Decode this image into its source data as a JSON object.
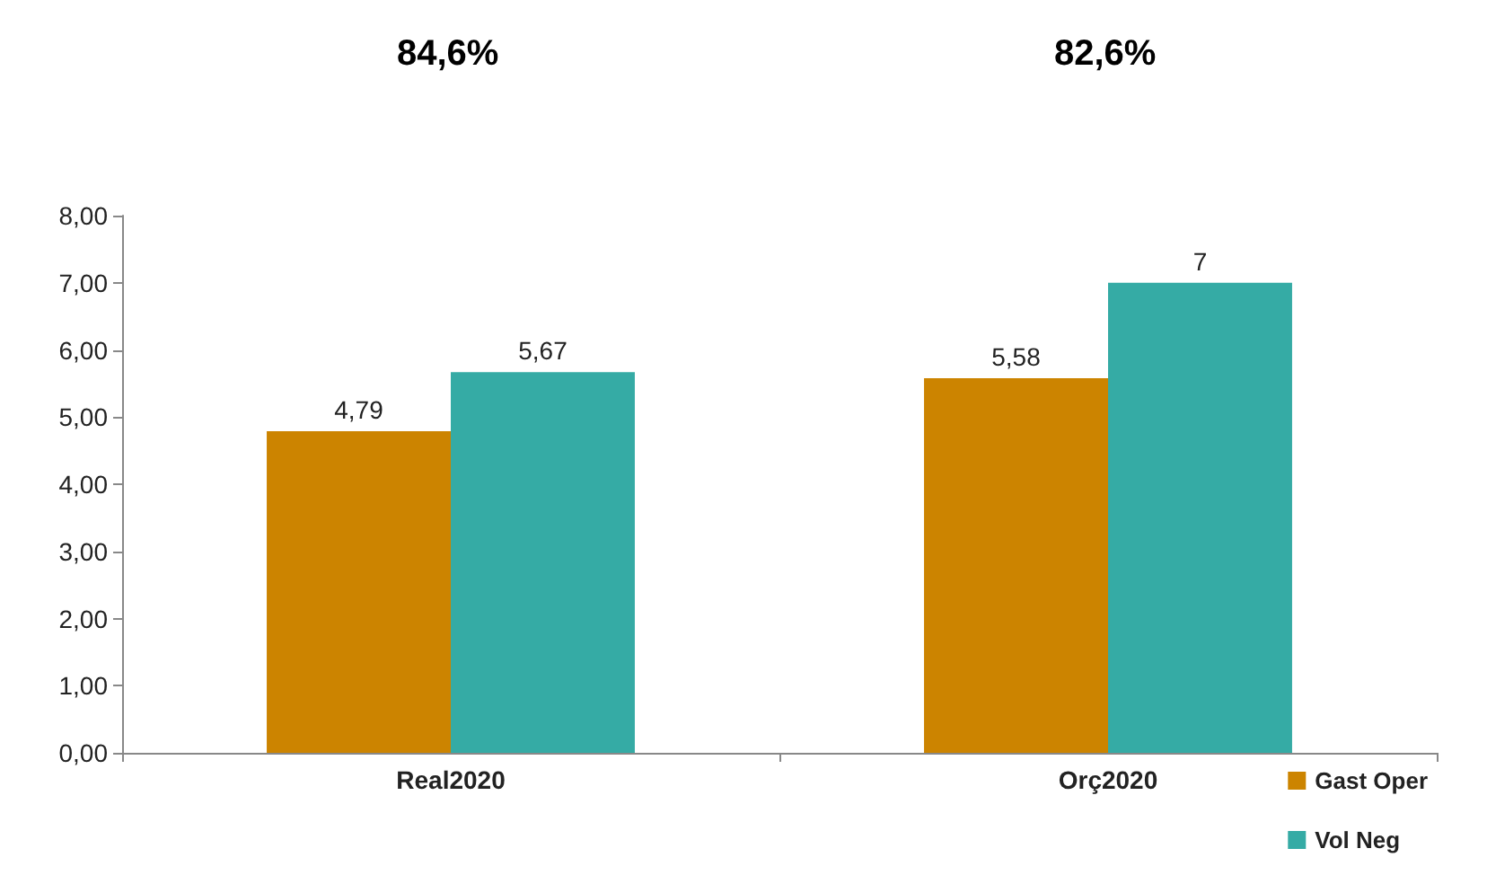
{
  "chart_data": {
    "type": "bar",
    "categories": [
      "Real2020",
      "Orç2020"
    ],
    "series": [
      {
        "name": "Gast Oper",
        "color": "#cc8400",
        "values": [
          4.79,
          5.58
        ],
        "value_labels": [
          "4,79",
          "5,58"
        ]
      },
      {
        "name": "Vol Neg",
        "color": "#35aba5",
        "values": [
          5.67,
          7
        ],
        "value_labels": [
          "5,67",
          "7"
        ]
      }
    ],
    "ylim": [
      0,
      8
    ],
    "yticks": [
      {
        "value": 0,
        "label": "0,00"
      },
      {
        "value": 1,
        "label": "1,00"
      },
      {
        "value": 2,
        "label": "2,00"
      },
      {
        "value": 3,
        "label": "3,00"
      },
      {
        "value": 4,
        "label": "4,00"
      },
      {
        "value": 5,
        "label": "5,00"
      },
      {
        "value": 6,
        "label": "6,00"
      },
      {
        "value": 7,
        "label": "7,00"
      },
      {
        "value": 8,
        "label": "8,00"
      }
    ],
    "annotations": [
      "84,6%",
      "82,6%"
    ],
    "legend": "bottom right",
    "grid": false
  }
}
